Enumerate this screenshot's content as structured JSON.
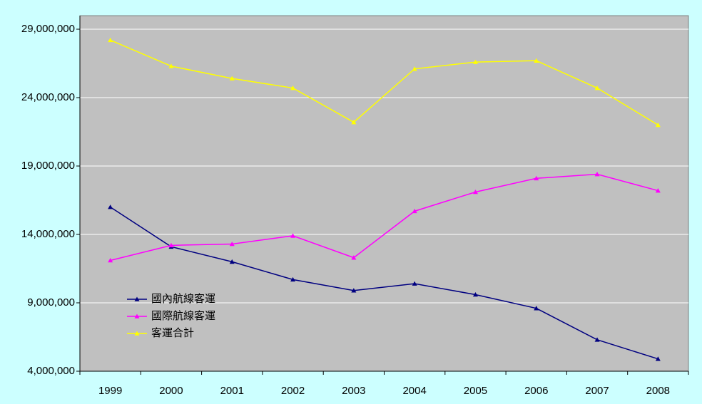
{
  "chart_data": {
    "type": "line",
    "categories": [
      "1999",
      "2000",
      "2001",
      "2002",
      "2003",
      "2004",
      "2005",
      "2006",
      "2007",
      "2008"
    ],
    "series": [
      {
        "name": "國內航線客運",
        "color": "#000080",
        "values": [
          16000000,
          13100000,
          12000000,
          10700000,
          9900000,
          10400000,
          9600000,
          8600000,
          6300000,
          4900000
        ]
      },
      {
        "name": "國際航線客運",
        "color": "#ff00ff",
        "values": [
          12100000,
          13200000,
          13300000,
          13900000,
          12300000,
          15700000,
          17100000,
          18100000,
          18400000,
          17200000
        ]
      },
      {
        "name": "客運合計",
        "color": "#ffff00",
        "values": [
          28200000,
          26300000,
          25400000,
          24700000,
          22200000,
          26100000,
          26600000,
          26700000,
          24700000,
          22000000
        ]
      }
    ],
    "ylim": [
      4000000,
      29000000
    ],
    "yticks": [
      {
        "value": 4000000,
        "label": "4,000,000"
      },
      {
        "value": 9000000,
        "label": "9,000,000"
      },
      {
        "value": 14000000,
        "label": "14,000,000"
      },
      {
        "value": 19000000,
        "label": "19,000,000"
      },
      {
        "value": 24000000,
        "label": "24,000,000"
      },
      {
        "value": 29000000,
        "label": "29,000,000"
      }
    ],
    "grid": true,
    "legend": "left"
  }
}
